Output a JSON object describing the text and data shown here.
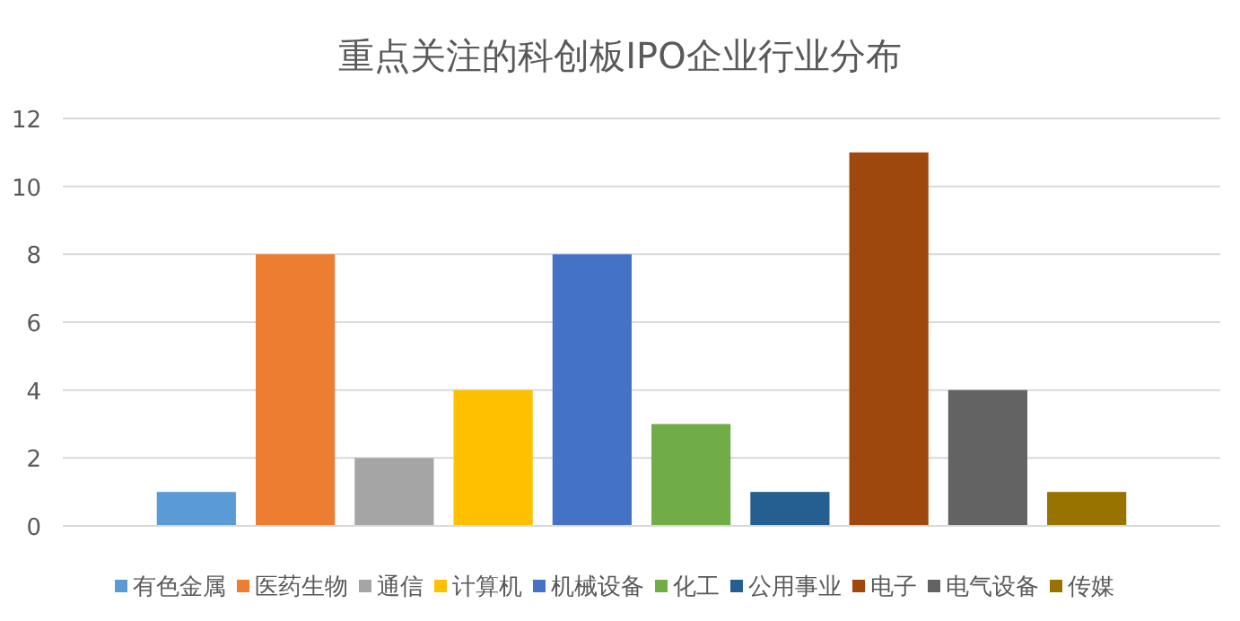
{
  "chart_data": {
    "type": "bar",
    "title": "重点关注的科创板IPO企业行业分布",
    "categories": [
      null
    ],
    "ylim": [
      0,
      12
    ],
    "yticks": [
      0,
      2,
      4,
      6,
      8,
      10,
      12
    ],
    "grid": "y",
    "legend": "bottom",
    "series": [
      {
        "name": "有色金属",
        "color": "#5b9bd5",
        "values": [
          1
        ]
      },
      {
        "name": "医药生物",
        "color": "#ed7d31",
        "values": [
          8
        ]
      },
      {
        "name": "通信",
        "color": "#a5a5a5",
        "values": [
          2
        ]
      },
      {
        "name": "计算机",
        "color": "#ffc000",
        "values": [
          4
        ]
      },
      {
        "name": "机械设备",
        "color": "#4472c4",
        "values": [
          8
        ]
      },
      {
        "name": "化工",
        "color": "#70ad47",
        "values": [
          3
        ]
      },
      {
        "name": "公用事业",
        "color": "#255e91",
        "values": [
          1
        ]
      },
      {
        "name": "电子",
        "color": "#9e480e",
        "values": [
          11
        ]
      },
      {
        "name": "电气设备",
        "color": "#636363",
        "values": [
          4
        ]
      },
      {
        "name": "传媒",
        "color": "#997300",
        "values": [
          1
        ]
      }
    ]
  }
}
